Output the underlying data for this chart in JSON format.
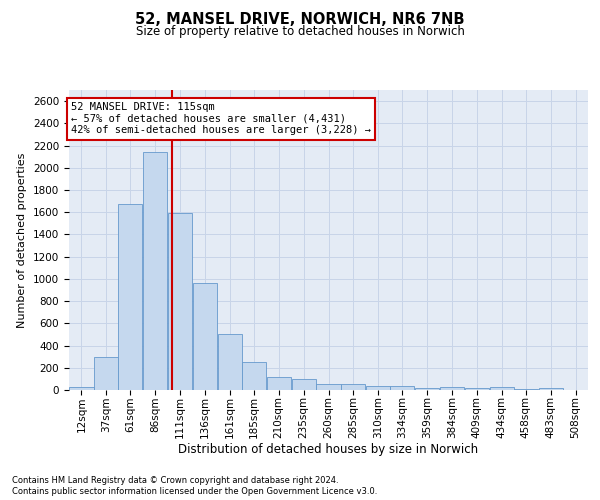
{
  "title_line1": "52, MANSEL DRIVE, NORWICH, NR6 7NB",
  "title_line2": "Size of property relative to detached houses in Norwich",
  "xlabel": "Distribution of detached houses by size in Norwich",
  "ylabel": "Number of detached properties",
  "footnote1": "Contains HM Land Registry data © Crown copyright and database right 2024.",
  "footnote2": "Contains public sector information licensed under the Open Government Licence v3.0.",
  "annotation_line1": "52 MANSEL DRIVE: 115sqm",
  "annotation_line2": "← 57% of detached houses are smaller (4,431)",
  "annotation_line3": "42% of semi-detached houses are larger (3,228) →",
  "categories": [
    "12sqm",
    "37sqm",
    "61sqm",
    "86sqm",
    "111sqm",
    "136sqm",
    "161sqm",
    "185sqm",
    "210sqm",
    "235sqm",
    "260sqm",
    "285sqm",
    "310sqm",
    "334sqm",
    "359sqm",
    "384sqm",
    "409sqm",
    "434sqm",
    "458sqm",
    "483sqm",
    "508sqm"
  ],
  "bin_starts": [
    12,
    37,
    61,
    86,
    111,
    136,
    161,
    185,
    210,
    235,
    260,
    285,
    310,
    334,
    359,
    384,
    409,
    434,
    458,
    483,
    508
  ],
  "bin_width": 25,
  "values": [
    25,
    300,
    1670,
    2140,
    1590,
    960,
    500,
    250,
    120,
    100,
    50,
    50,
    35,
    35,
    20,
    30,
    20,
    30,
    5,
    20,
    0
  ],
  "bar_color": "#C5D8EE",
  "bar_edge_color": "#6699CC",
  "vline_color": "#CC0000",
  "vline_x": 115,
  "annotation_box_edge": "#CC0000",
  "ylim": [
    0,
    2700
  ],
  "yticks": [
    0,
    200,
    400,
    600,
    800,
    1000,
    1200,
    1400,
    1600,
    1800,
    2000,
    2200,
    2400,
    2600
  ],
  "grid_color": "#C8D4E8",
  "background_color": "#E4EBF5",
  "title_fontsize": 10.5,
  "subtitle_fontsize": 8.5,
  "ylabel_fontsize": 8,
  "xlabel_fontsize": 8.5,
  "tick_fontsize": 7.5,
  "annot_fontsize": 7.5,
  "footnote_fontsize": 6.0
}
